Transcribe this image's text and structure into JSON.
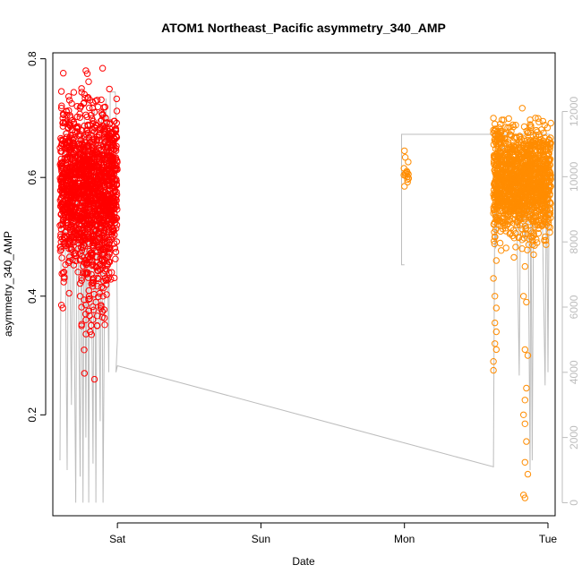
{
  "chart_data": {
    "type": "scatter",
    "title": "ATOM1 Northeast_Pacific asymmetry_340_AMP",
    "xlabel": "Date",
    "ylabel": "asymmetry_340_AMP",
    "x_unit": "days from Saturday 00:00",
    "xlim": [
      -0.45,
      3.05
    ],
    "ylim": [
      0.03,
      0.81
    ],
    "x_ticks": [
      {
        "value": 0,
        "label": "Sat"
      },
      {
        "value": 1,
        "label": "Sun"
      },
      {
        "value": 2,
        "label": "Mon"
      },
      {
        "value": 3,
        "label": "Tue"
      }
    ],
    "y_ticks": [
      0.2,
      0.4,
      0.6,
      0.8
    ],
    "y2_ticks": [
      0,
      2000,
      4000,
      6000,
      8000,
      10000,
      12000
    ],
    "y2lim": [
      -400,
      13800
    ],
    "series": [
      {
        "color": "#ff0000",
        "marker": "open-circle",
        "clusters": [
          {
            "x_range": [
              -0.4,
              0.0
            ],
            "y_center": 0.585,
            "y_spread": 0.065,
            "count": 1400
          },
          {
            "x_range": [
              -0.25,
              -0.05
            ],
            "y_center": 0.48,
            "y_spread": 0.07,
            "count": 160
          }
        ],
        "points": [
          {
            "x": -0.22,
            "y": 0.78
          },
          {
            "x": -0.21,
            "y": 0.775
          },
          {
            "x": -0.25,
            "y": 0.75
          },
          {
            "x": -0.23,
            "y": 0.74
          },
          {
            "x": -0.28,
            "y": 0.72
          },
          {
            "x": -0.19,
            "y": 0.73
          },
          {
            "x": -0.16,
            "y": 0.71
          },
          {
            "x": -0.38,
            "y": 0.7
          },
          {
            "x": -0.02,
            "y": 0.695
          },
          {
            "x": -0.39,
            "y": 0.385
          },
          {
            "x": -0.38,
            "y": 0.38
          },
          {
            "x": -0.37,
            "y": 0.43
          },
          {
            "x": -0.25,
            "y": 0.35
          },
          {
            "x": -0.22,
            "y": 0.36
          },
          {
            "x": -0.19,
            "y": 0.34
          },
          {
            "x": -0.18,
            "y": 0.335
          },
          {
            "x": -0.2,
            "y": 0.375
          },
          {
            "x": -0.15,
            "y": 0.39
          },
          {
            "x": -0.23,
            "y": 0.27
          },
          {
            "x": -0.16,
            "y": 0.26
          },
          {
            "x": -0.26,
            "y": 0.4
          },
          {
            "x": -0.1,
            "y": 0.4
          },
          {
            "x": -0.04,
            "y": 0.44
          }
        ]
      },
      {
        "color": "#ff8c00",
        "marker": "open-circle",
        "clusters": [
          {
            "x_range": [
              1.995,
              2.03
            ],
            "y_center": 0.615,
            "y_spread": 0.014,
            "count": 14
          },
          {
            "x_range": [
              2.62,
              3.02
            ],
            "y_center": 0.595,
            "y_spread": 0.045,
            "count": 1300
          }
        ],
        "points": [
          {
            "x": 2.0,
            "y": 0.585
          },
          {
            "x": 2.0,
            "y": 0.645
          },
          {
            "x": 2.62,
            "y": 0.7
          },
          {
            "x": 2.63,
            "y": 0.69
          },
          {
            "x": 2.62,
            "y": 0.68
          },
          {
            "x": 2.63,
            "y": 0.5
          },
          {
            "x": 2.64,
            "y": 0.46
          },
          {
            "x": 2.62,
            "y": 0.43
          },
          {
            "x": 2.63,
            "y": 0.4
          },
          {
            "x": 2.64,
            "y": 0.38
          },
          {
            "x": 2.63,
            "y": 0.355
          },
          {
            "x": 2.64,
            "y": 0.34
          },
          {
            "x": 2.63,
            "y": 0.32
          },
          {
            "x": 2.62,
            "y": 0.29
          },
          {
            "x": 2.62,
            "y": 0.275
          },
          {
            "x": 2.64,
            "y": 0.31
          },
          {
            "x": 2.82,
            "y": 0.48
          },
          {
            "x": 2.84,
            "y": 0.45
          },
          {
            "x": 2.83,
            "y": 0.4
          },
          {
            "x": 2.85,
            "y": 0.39
          },
          {
            "x": 2.84,
            "y": 0.31
          },
          {
            "x": 2.86,
            "y": 0.3
          },
          {
            "x": 2.85,
            "y": 0.245
          },
          {
            "x": 2.84,
            "y": 0.225
          },
          {
            "x": 2.83,
            "y": 0.2
          },
          {
            "x": 2.84,
            "y": 0.185
          },
          {
            "x": 2.85,
            "y": 0.155
          },
          {
            "x": 2.84,
            "y": 0.12
          },
          {
            "x": 2.86,
            "y": 0.1
          },
          {
            "x": 2.83,
            "y": 0.065
          },
          {
            "x": 2.84,
            "y": 0.06
          },
          {
            "x": 2.88,
            "y": 0.5
          },
          {
            "x": 2.9,
            "y": 0.47
          },
          {
            "x": 2.99,
            "y": 0.52
          },
          {
            "x": 2.98,
            "y": 0.5
          }
        ]
      }
    ],
    "secondary_line": {
      "color": "#bdbdbd",
      "axis": "right",
      "points": [
        [
          -0.4,
          1300
        ],
        [
          -0.39,
          10200
        ],
        [
          -0.37,
          11400
        ],
        [
          -0.35,
          1000
        ],
        [
          -0.34,
          11000
        ],
        [
          -0.32,
          3000
        ],
        [
          -0.31,
          10500
        ],
        [
          -0.29,
          0
        ],
        [
          -0.28,
          11500
        ],
        [
          -0.26,
          800
        ],
        [
          -0.25,
          10800
        ],
        [
          -0.24,
          0
        ],
        [
          -0.23,
          11800
        ],
        [
          -0.22,
          2000
        ],
        [
          -0.21,
          11200
        ],
        [
          -0.2,
          0
        ],
        [
          -0.19,
          11700
        ],
        [
          -0.17,
          1200
        ],
        [
          -0.16,
          12000
        ],
        [
          -0.15,
          0
        ],
        [
          -0.14,
          11000
        ],
        [
          -0.12,
          2500
        ],
        [
          -0.11,
          12000
        ],
        [
          -0.1,
          0
        ],
        [
          -0.08,
          12400
        ],
        [
          -0.06,
          4000
        ],
        [
          -0.05,
          12600
        ],
        [
          -0.03,
          12600
        ],
        [
          -0.02,
          12600
        ],
        [
          -0.015,
          12600
        ],
        [
          -0.01,
          12200
        ],
        [
          0.0,
          5000
        ],
        [
          -0.01,
          4000
        ],
        [
          0.0,
          4200
        ],
        [
          2.62,
          1100
        ],
        [
          2.63,
          10000
        ],
        [
          2.635,
          7800
        ],
        [
          2.64,
          8000
        ],
        [
          2.65,
          10800
        ],
        [
          2.7,
          10900
        ],
        [
          2.78,
          9800
        ],
        [
          2.8,
          3900
        ],
        [
          2.81,
          10000
        ],
        [
          2.84,
          8000
        ],
        [
          2.86,
          9900
        ],
        [
          2.875,
          1000
        ],
        [
          2.88,
          10200
        ],
        [
          2.89,
          1300
        ],
        [
          2.9,
          9700
        ],
        [
          2.94,
          9600
        ],
        [
          2.95,
          10500
        ],
        [
          2.96,
          9000
        ],
        [
          2.98,
          3600
        ],
        [
          2.99,
          10700
        ],
        [
          3.0,
          4000
        ],
        [
          3.01,
          10700
        ],
        [
          3.01,
          11300
        ],
        [
          1.98,
          11300
        ],
        [
          1.98,
          7300
        ],
        [
          2.0,
          7300
        ]
      ]
    }
  }
}
